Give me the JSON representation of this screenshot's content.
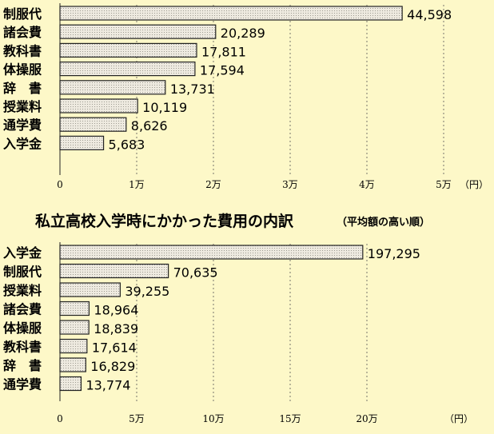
{
  "charts": [
    {
      "type": "bar",
      "orientation": "horizontal",
      "title": "",
      "categories": [
        "制服代",
        "諸会費",
        "教科書",
        "体操服",
        "辞　書",
        "授業料",
        "通学費",
        "入学金"
      ],
      "values": [
        44598,
        20289,
        17811,
        17594,
        13731,
        10119,
        8626,
        5683
      ],
      "value_labels": [
        "44,598",
        "20,289",
        "17,811",
        "17,594",
        "13,731",
        "10,119",
        "8,626",
        "5,683"
      ],
      "xlim": [
        0,
        50000
      ],
      "ticks": [
        0,
        10000,
        20000,
        30000,
        40000,
        50000
      ],
      "tick_labels": [
        "0",
        "1万",
        "2万",
        "3万",
        "4万",
        "5万"
      ],
      "unit": "（円）",
      "grid": "vertical-dashed"
    },
    {
      "type": "bar",
      "orientation": "horizontal",
      "title": "私立高校入学時にかかった費用の内訳",
      "subtitle": "（平均額の高い順）",
      "categories": [
        "入学金",
        "制服代",
        "授業料",
        "諸会費",
        "体操服",
        "教科書",
        "辞　書",
        "通学費"
      ],
      "values": [
        197295,
        70635,
        39255,
        18964,
        18839,
        17614,
        16829,
        13774
      ],
      "value_labels": [
        "197,295",
        "70,635",
        "39,255",
        "18,964",
        "18,839",
        "17,614",
        "16,829",
        "13,774"
      ],
      "xlim": [
        0,
        250000
      ],
      "ticks": [
        0,
        50000,
        100000,
        150000,
        200000
      ],
      "tick_labels": [
        "0",
        "5万",
        "10万",
        "15万",
        "20万"
      ],
      "unit": "（円）",
      "grid": "vertical-dashed"
    }
  ],
  "colors": {
    "bar_fill": "#e8e4d8",
    "bar_stroke": "#222222",
    "background": "#fdf8c8"
  }
}
